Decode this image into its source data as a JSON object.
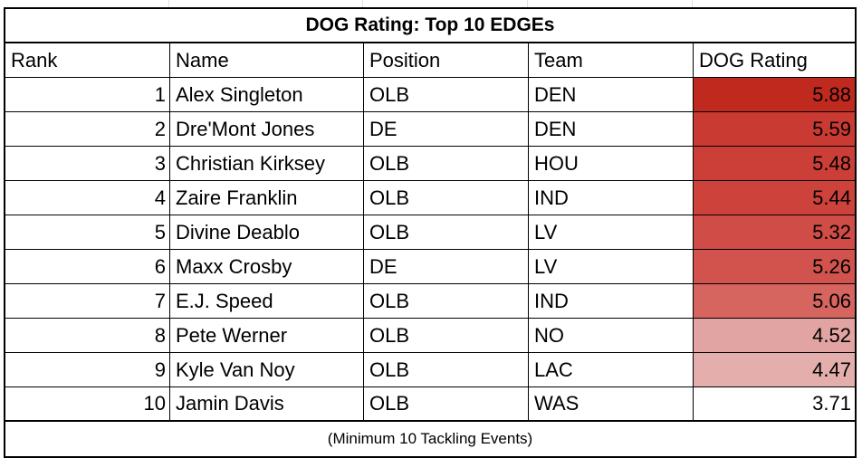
{
  "table": {
    "title": "DOG Rating: Top 10 EDGEs",
    "headers": {
      "rank": "Rank",
      "name": "Name",
      "position": "Position",
      "team": "Team",
      "dog": "DOG Rating"
    },
    "rows": [
      {
        "rank": "1",
        "name": "Alex Singleton",
        "position": "OLB",
        "team": "DEN",
        "dog": "5.88",
        "color": "#c0291e"
      },
      {
        "rank": "2",
        "name": "Dre'Mont Jones",
        "position": "DE",
        "team": "DEN",
        "dog": "5.59",
        "color": "#c93a32"
      },
      {
        "rank": "3",
        "name": "Christian Kirksey",
        "position": "OLB",
        "team": "HOU",
        "dog": "5.48",
        "color": "#cc3f38"
      },
      {
        "rank": "4",
        "name": "Zaire Franklin",
        "position": "OLB",
        "team": "IND",
        "dog": "5.44",
        "color": "#cd423b"
      },
      {
        "rank": "5",
        "name": "Divine Deablo",
        "position": "OLB",
        "team": "LV",
        "dog": "5.32",
        "color": "#d04c46"
      },
      {
        "rank": "6",
        "name": "Maxx Crosby",
        "position": "DE",
        "team": "LV",
        "dog": "5.26",
        "color": "#d2534d"
      },
      {
        "rank": "7",
        "name": "E.J. Speed",
        "position": "OLB",
        "team": "IND",
        "dog": "5.06",
        "color": "#d6645f"
      },
      {
        "rank": "8",
        "name": "Pete Werner",
        "position": "OLB",
        "team": "NO",
        "dog": "4.52",
        "color": "#e2a4a2"
      },
      {
        "rank": "9",
        "name": "Kyle Van Noy",
        "position": "OLB",
        "team": "LAC",
        "dog": "4.47",
        "color": "#e4aeac"
      },
      {
        "rank": "10",
        "name": "Jamin Davis",
        "position": "OLB",
        "team": "WAS",
        "dog": "3.71",
        "color": "#ffffff"
      }
    ],
    "footer": "(Minimum 10 Tackling Events)"
  }
}
